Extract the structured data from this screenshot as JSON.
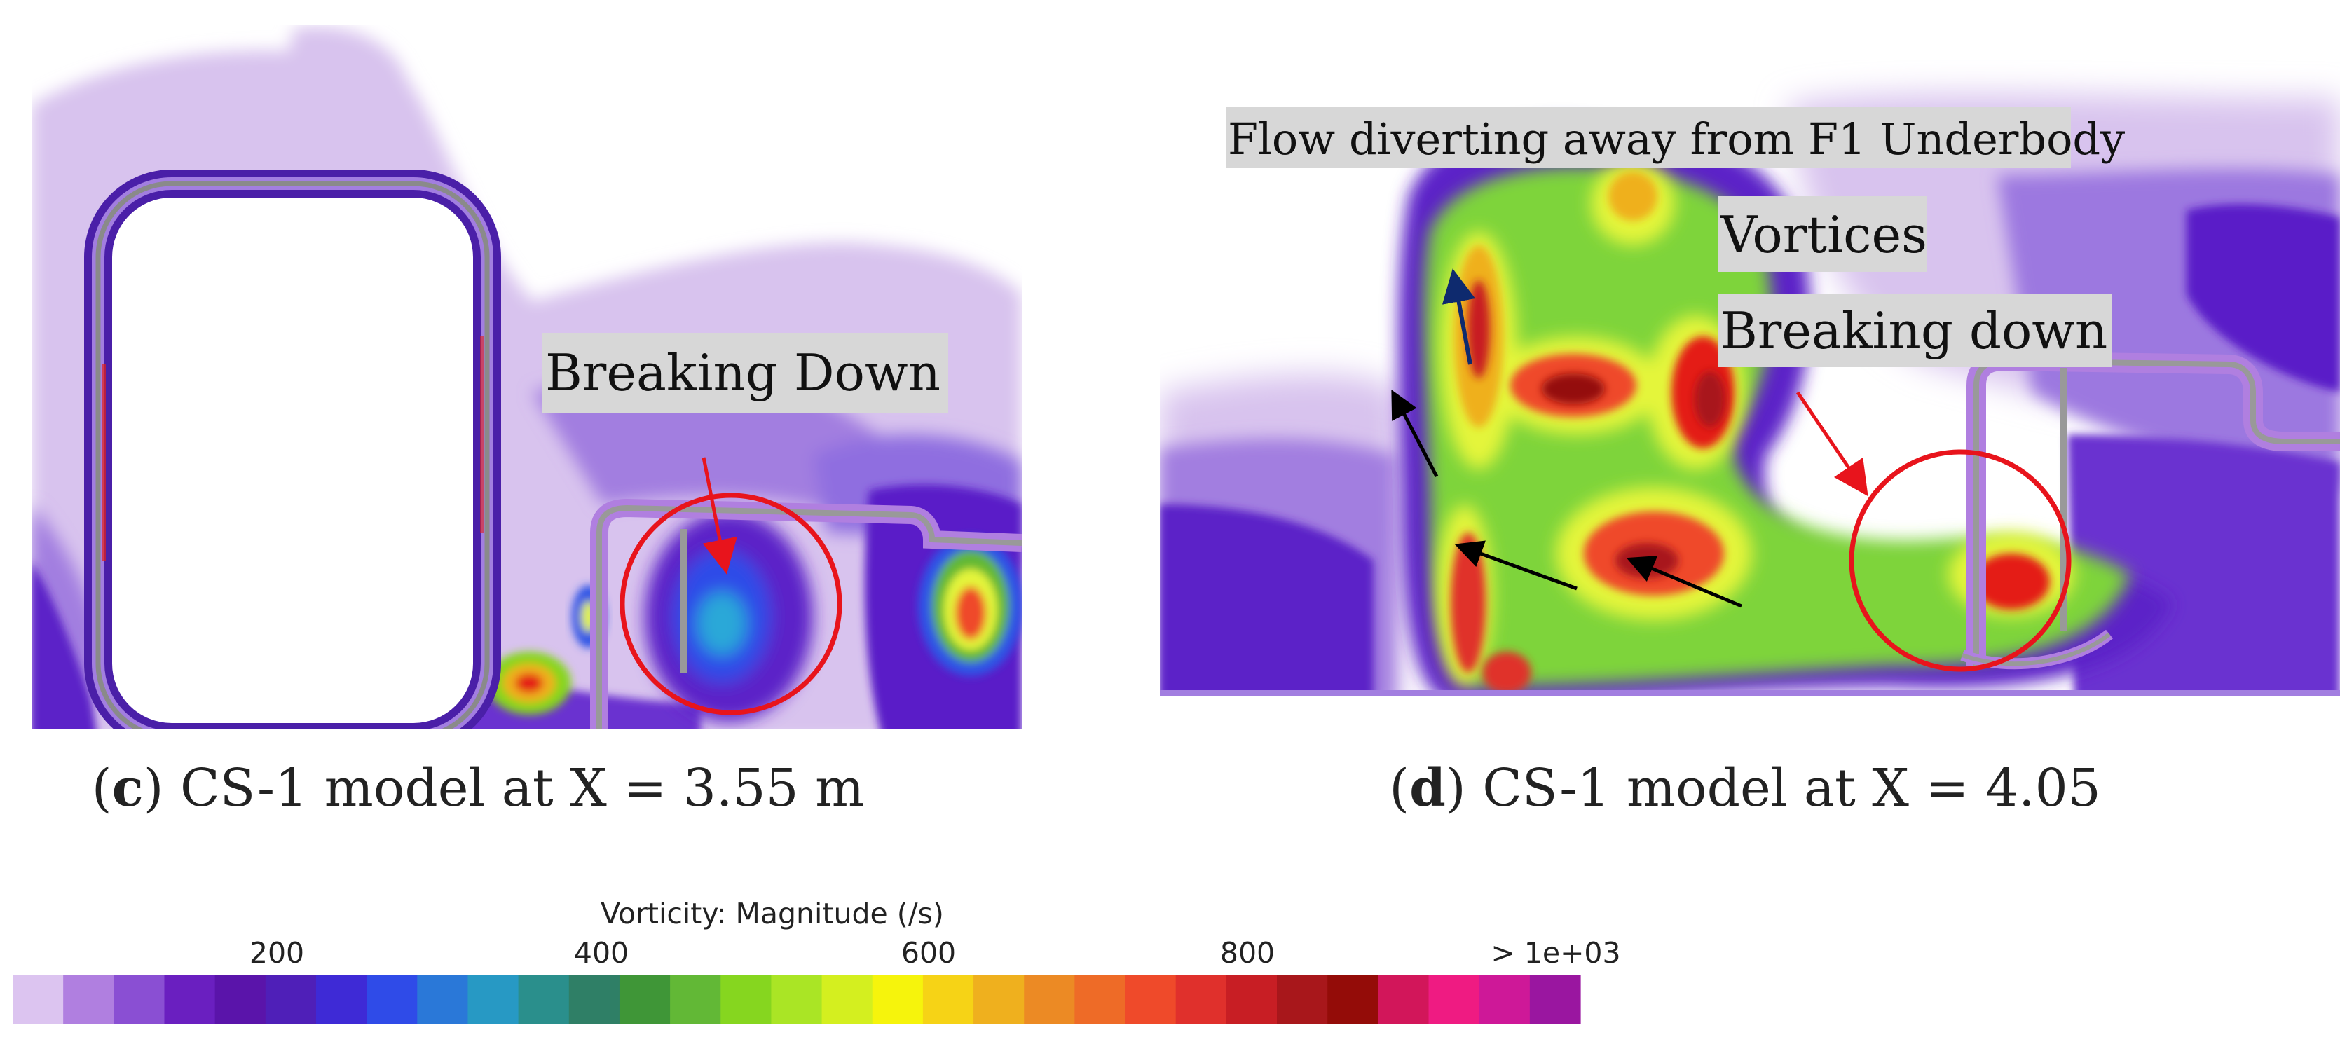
{
  "panels": [
    {
      "id": "c",
      "caption_letter": "c",
      "caption_text": "CS-1 model at X = 3.55 m",
      "annotations": [
        "Breaking Down"
      ]
    },
    {
      "id": "d",
      "caption_letter": "d",
      "caption_text": "CS-1 model at X = 4.05",
      "annotations": [
        "Flow diverting away from F1 Underbody",
        "Vortices",
        "Breaking down"
      ]
    }
  ],
  "colorbar": {
    "title": "Vorticity: Magnitude (/s)",
    "tick_labels": [
      "200",
      "400",
      "600",
      "800",
      "> 1e+03"
    ],
    "tick_values": [
      200,
      400,
      600,
      800,
      1000
    ],
    "range": [
      0,
      1000
    ],
    "colors": [
      "#dcc4f0",
      "#b07fe0",
      "#8a4fd3",
      "#6a1fc0",
      "#5a14aa",
      "#4f1fb8",
      "#3e2ad6",
      "#2f4be8",
      "#2a78d8",
      "#2799c4",
      "#2a8f8c",
      "#2f7f66",
      "#3f9637",
      "#62b836",
      "#86d61f",
      "#aae525",
      "#d4ef1f",
      "#f6f40c",
      "#f6d316",
      "#efb01e",
      "#ec8a24",
      "#ee6b27",
      "#ef4a2a",
      "#e0302c",
      "#c81e24",
      "#a8171b",
      "#940c08",
      "#d2165a",
      "#ef1b82",
      "#ce1898",
      "#9a16a0"
    ]
  },
  "palette": {
    "light_purple": "#d8c3ee",
    "mid_purple": "#a27ee0",
    "deep_purple": "#5b20c8",
    "blue": "#2f55e6",
    "green": "#7ed43a",
    "yellow": "#e4f53a",
    "red": "#e41f18",
    "highlight_circle": "#e8141c",
    "label_bg": "#d7d7d7"
  }
}
